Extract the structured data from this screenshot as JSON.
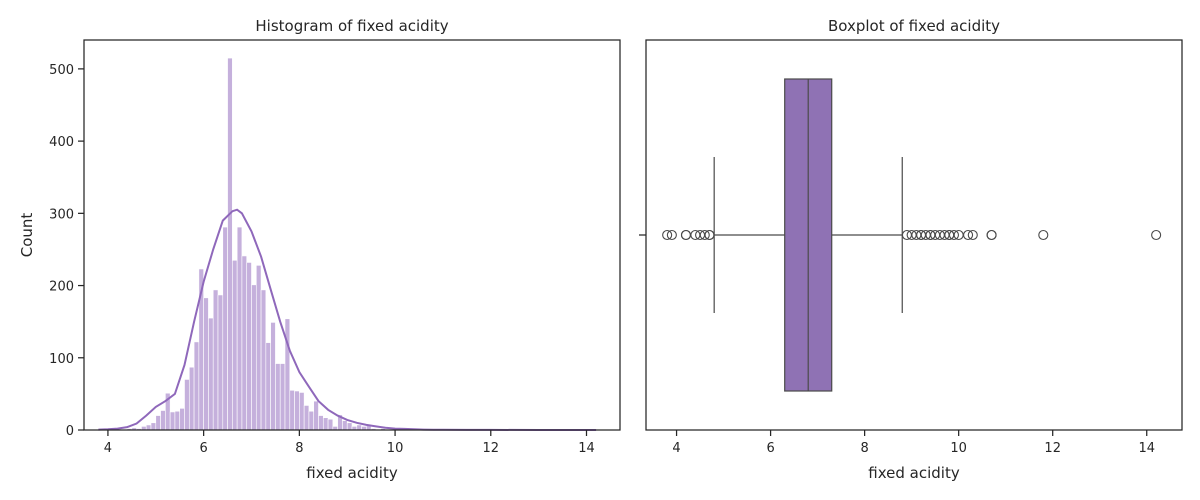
{
  "colors": {
    "bar": "#c5b0dc",
    "bar_edge": "#ffffff",
    "kde": "#8f68bb",
    "box_fill": "#8f72b4",
    "box_edge": "#4a4a4a",
    "axis": "#262626"
  },
  "chart_data": [
    {
      "type": "bar",
      "title": "Histogram of fixed acidity",
      "xlabel": "fixed acidity",
      "ylabel": "Count",
      "xlim": [
        3.5,
        14.7
      ],
      "ylim": [
        0,
        540
      ],
      "xticks": [
        4,
        6,
        8,
        10,
        12,
        14
      ],
      "yticks": [
        0,
        100,
        200,
        300,
        400,
        500
      ],
      "bin_start": 3.8,
      "bin_width": 0.1,
      "counts": [
        1,
        0,
        0,
        0,
        1,
        1,
        2,
        3,
        2,
        5,
        7,
        10,
        20,
        27,
        51,
        25,
        26,
        30,
        70,
        87,
        122,
        223,
        183,
        155,
        194,
        187,
        281,
        515,
        235,
        281,
        241,
        232,
        201,
        228,
        194,
        121,
        149,
        92,
        92,
        154,
        55,
        54,
        52,
        34,
        26,
        40,
        20,
        17,
        15,
        5,
        21,
        13,
        10,
        5,
        7,
        5,
        8,
        2,
        1,
        2,
        1,
        1,
        0,
        0,
        1,
        0,
        0,
        0,
        0,
        0,
        1,
        0,
        0,
        0,
        0,
        0,
        0,
        0,
        0,
        0,
        1,
        0,
        0,
        0,
        0,
        0,
        0,
        0,
        0,
        0,
        0,
        0,
        0,
        0,
        0,
        0,
        0,
        0,
        0,
        0,
        0,
        0,
        0,
        1
      ],
      "kde": {
        "x": [
          3.8,
          4.0,
          4.2,
          4.4,
          4.6,
          4.8,
          5.0,
          5.2,
          5.4,
          5.6,
          5.8,
          6.0,
          6.2,
          6.4,
          6.6,
          6.7,
          6.8,
          7.0,
          7.2,
          7.4,
          7.6,
          7.8,
          8.0,
          8.2,
          8.4,
          8.6,
          8.8,
          9.0,
          9.2,
          9.4,
          9.6,
          9.8,
          10.0,
          10.2,
          10.4,
          10.6,
          10.8,
          11.0,
          11.5,
          12.0,
          13.0,
          14.2
        ],
        "y": [
          0.5,
          1,
          2,
          4,
          9,
          20,
          32,
          40,
          50,
          90,
          150,
          205,
          250,
          290,
          303,
          305,
          300,
          275,
          240,
          195,
          150,
          110,
          80,
          60,
          40,
          28,
          20,
          14,
          10,
          7,
          5,
          3,
          2,
          1.5,
          1,
          0.6,
          0.4,
          0.3,
          0.2,
          0.1,
          0,
          0
        ]
      }
    },
    {
      "type": "box",
      "title": "Boxplot of fixed acidity",
      "xlabel": "fixed acidity",
      "xlim": [
        3.35,
        14.75
      ],
      "xticks": [
        4,
        6,
        8,
        10,
        12,
        14
      ],
      "q1": 6.3,
      "median": 6.8,
      "q3": 7.3,
      "whisker_low": 4.8,
      "whisker_high": 8.8,
      "outliers": [
        3.8,
        3.9,
        4.2,
        4.2,
        4.4,
        4.5,
        4.6,
        4.7,
        4.7,
        8.9,
        9.0,
        9.1,
        9.2,
        9.2,
        9.3,
        9.4,
        9.4,
        9.5,
        9.6,
        9.7,
        9.8,
        9.8,
        9.9,
        10.0,
        10.2,
        10.3,
        10.7,
        10.7,
        11.8,
        14.2
      ]
    }
  ]
}
